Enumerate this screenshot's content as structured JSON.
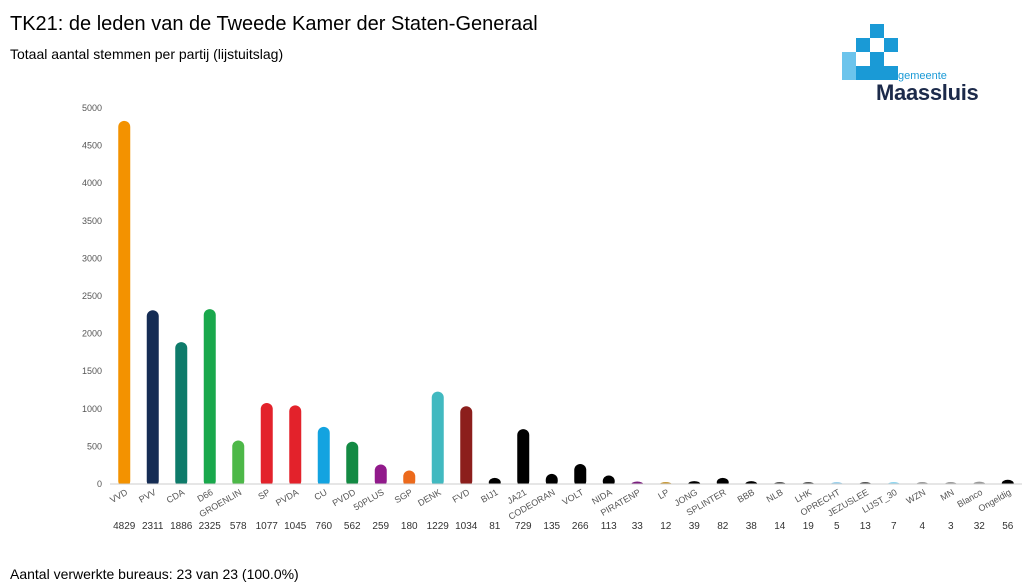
{
  "header": {
    "title": "TK21: de leden van de Tweede Kamer der Staten-Generaal",
    "subtitle": "Totaal aantal stemmen per partij (lijstuitslag)"
  },
  "logo": {
    "small_text": "gemeente",
    "big_text": "Maassluis",
    "color_primary": "#1a9ad6",
    "color_dark": "#1c2a4a"
  },
  "footer": {
    "text": "Aantal verwerkte bureaus: 23 van 23 (100.0%)"
  },
  "chart_data": {
    "type": "bar",
    "title": "TK21: de leden van de Tweede Kamer der Staten-Generaal",
    "subtitle": "Totaal aantal stemmen per partij (lijstuitslag)",
    "xlabel": "",
    "ylabel": "",
    "ylim": [
      0,
      5000
    ],
    "yticks": [
      0,
      500,
      1000,
      1500,
      2000,
      2500,
      3000,
      3500,
      4000,
      4500,
      5000
    ],
    "grid": false,
    "legend": "none",
    "categories": [
      "VVD",
      "PVV",
      "CDA",
      "D66",
      "GROENLIN",
      "SP",
      "PVDA",
      "CU",
      "PVDD",
      "50PLUS",
      "SGP",
      "DENK",
      "FVD",
      "BIJ1",
      "JA21",
      "CODEORAN",
      "VOLT",
      "NIDA",
      "PIRATENP",
      "LP",
      "JONG",
      "SPLINTER",
      "BBB",
      "NLB",
      "LHK",
      "OPRECHT",
      "JEZUSLEE",
      "LIJST_30",
      "WZN",
      "MN",
      "Blanco",
      "Ongeldig"
    ],
    "values": [
      4829,
      2311,
      1886,
      2325,
      578,
      1077,
      1045,
      760,
      562,
      259,
      180,
      1229,
      1034,
      81,
      729,
      135,
      266,
      113,
      33,
      12,
      39,
      82,
      38,
      14,
      19,
      5,
      13,
      7,
      4,
      3,
      32,
      56
    ],
    "colors": [
      "#f39200",
      "#152c54",
      "#0e7b6a",
      "#19a84c",
      "#4db848",
      "#e3222b",
      "#e3222b",
      "#13a3e0",
      "#138a43",
      "#911a8b",
      "#ec6a1c",
      "#41b9c0",
      "#8c1e1c",
      "#000000",
      "#000000",
      "#000000",
      "#000000",
      "#000000",
      "#7b1f7f",
      "#c79a3a",
      "#000000",
      "#000000",
      "#000000",
      "#555555",
      "#555555",
      "#9ad0ec",
      "#555555",
      "#8fd6f0",
      "#9a9a9a",
      "#9a9a9a",
      "#9a9a9a",
      "#000000"
    ]
  }
}
